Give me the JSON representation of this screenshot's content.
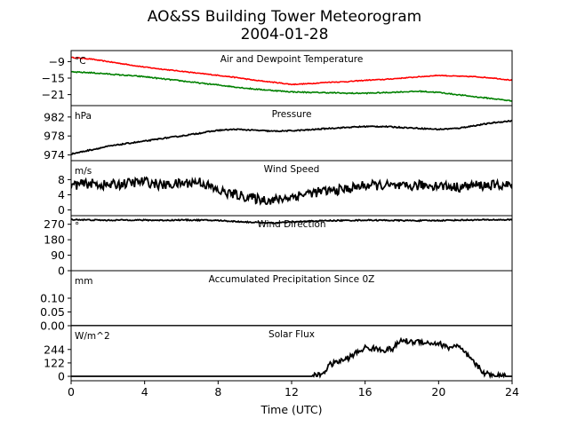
{
  "figure": {
    "title_line1": "AO&SS Building Tower Meteorogram",
    "title_line2": "2004-01-28"
  },
  "chart_data": {
    "type": "line",
    "x_unit": "hours",
    "xlabel": "Time (UTC)",
    "xlim": [
      0,
      24
    ],
    "xticks": [
      0,
      4,
      8,
      12,
      16,
      20,
      24
    ],
    "grid": false,
    "panels": [
      {
        "id": "temperature",
        "title": "Air and Dewpoint Temperature",
        "unit": "°C",
        "ylim": [
          -25,
          -5
        ],
        "yticks": [
          -21,
          -15,
          -9
        ],
        "ytick_labels": [
          "−21",
          "−15",
          "−9"
        ],
        "series": [
          {
            "color": "#ff0000",
            "x": [
              0,
              1,
              2,
              3,
              4,
              5,
              6,
              7,
              8,
              9,
              10,
              11,
              12,
              13,
              14,
              15,
              16,
              17,
              18,
              19,
              20,
              21,
              22,
              23,
              24
            ],
            "y": [
              -7.5,
              -8.0,
              -9.0,
              -10.0,
              -11.0,
              -11.8,
              -12.5,
              -13.3,
              -14.0,
              -14.8,
              -15.8,
              -16.5,
              -17.3,
              -17.0,
              -16.5,
              -16.3,
              -15.8,
              -15.5,
              -15.0,
              -14.5,
              -14.0,
              -14.3,
              -14.5,
              -15.0,
              -15.8
            ],
            "noise": 0.15
          },
          {
            "color": "#008000",
            "x": [
              0,
              1,
              2,
              3,
              4,
              5,
              6,
              7,
              8,
              9,
              10,
              11,
              12,
              13,
              14,
              15,
              16,
              17,
              18,
              19,
              20,
              21,
              22,
              23,
              24
            ],
            "y": [
              -12.8,
              -13.0,
              -13.5,
              -14.0,
              -14.5,
              -15.3,
              -16.0,
              -16.8,
              -17.5,
              -18.3,
              -19.0,
              -19.5,
              -20.0,
              -20.2,
              -20.3,
              -20.5,
              -20.5,
              -20.3,
              -20.0,
              -19.8,
              -20.2,
              -21.0,
              -21.8,
              -22.5,
              -23.3
            ],
            "noise": 0.2
          }
        ]
      },
      {
        "id": "pressure",
        "title": "Pressure",
        "unit": "hPa",
        "ylim": [
          972.8,
          984.4
        ],
        "yticks": [
          974,
          978,
          982
        ],
        "ytick_labels": [
          "974",
          "978",
          "982"
        ],
        "series": [
          {
            "color": "#000000",
            "x": [
              0,
              1,
              2,
              3,
              4,
              5,
              6,
              7,
              8,
              9,
              10,
              11,
              12,
              13,
              14,
              15,
              16,
              17,
              18,
              19,
              20,
              21,
              22,
              23,
              24
            ],
            "y": [
              974.2,
              975.0,
              975.8,
              976.4,
              976.9,
              977.5,
              978.0,
              978.6,
              979.2,
              979.4,
              979.2,
              979.0,
              979.1,
              979.3,
              979.6,
              979.8,
              980.0,
              980.0,
              979.8,
              979.6,
              979.4,
              979.6,
              980.2,
              980.8,
              981.2
            ],
            "noise": 0.12
          }
        ]
      },
      {
        "id": "wind_speed",
        "title": "Wind Speed",
        "unit": "m/s",
        "ylim": [
          -1.5,
          13
        ],
        "yticks": [
          0,
          4,
          8
        ],
        "ytick_labels": [
          "0",
          "4",
          "8"
        ],
        "series": [
          {
            "color": "#000000",
            "x": [
              0,
              1,
              2,
              3,
              4,
              5,
              6,
              7,
              8,
              9,
              10,
              11,
              12,
              13,
              14,
              15,
              16,
              17,
              18,
              19,
              20,
              21,
              22,
              23,
              24
            ],
            "y": [
              6.5,
              7.0,
              6.5,
              7.0,
              7.5,
              6.5,
              7.0,
              7.5,
              5.0,
              4.0,
              3.0,
              2.5,
              3.5,
              4.5,
              5.0,
              5.5,
              6.5,
              6.5,
              6.0,
              6.5,
              6.5,
              6.0,
              6.5,
              6.5,
              6.5
            ],
            "noise": 1.3
          }
        ]
      },
      {
        "id": "wind_direction",
        "title": "Wind Direction",
        "unit": "°",
        "ylim": [
          0,
          320
        ],
        "yticks": [
          0,
          90,
          180,
          270
        ],
        "ytick_labels": [
          "0",
          "90",
          "180",
          "270"
        ],
        "series": [
          {
            "color": "#000000",
            "x": [
              0,
              1,
              2,
              3,
              4,
              5,
              6,
              7,
              8,
              9,
              10,
              11,
              12,
              13,
              14,
              15,
              16,
              17,
              18,
              19,
              20,
              21,
              22,
              23,
              24
            ],
            "y": [
              298,
              295,
              293,
              295,
              294,
              293,
              295,
              294,
              292,
              286,
              281,
              277,
              283,
              288,
              291,
              292,
              294,
              293,
              292,
              291,
              292,
              294,
              295,
              296,
              296
            ],
            "noise": 3.5
          }
        ]
      },
      {
        "id": "precipitation",
        "title": "Accumulated Precipitation Since 0Z",
        "unit": "mm",
        "ylim": [
          0,
          0.2
        ],
        "yticks": [
          0.0,
          0.05,
          0.1
        ],
        "ytick_labels": [
          "0.00",
          "0.05",
          "0.10"
        ],
        "series": [
          {
            "color": "#000000",
            "x": [
              0,
              24
            ],
            "y": [
              0,
              0
            ],
            "noise": 0
          }
        ]
      },
      {
        "id": "solar_flux",
        "title": "Solar Flux",
        "unit": "W/m^2",
        "ylim": [
          -40,
          460
        ],
        "yticks": [
          0,
          122,
          244
        ],
        "ytick_labels": [
          "0",
          "122",
          "244"
        ],
        "series": [
          {
            "color": "#000000",
            "x": [
              0,
              13.0,
              13.5,
              13.8,
              14.0,
              14.5,
              15.0,
              15.5,
              16.0,
              16.5,
              17.0,
              17.5,
              18.0,
              18.5,
              19.0,
              19.5,
              20.0,
              20.5,
              21.0,
              21.5,
              22.0,
              22.5,
              23.0,
              24
            ],
            "y": [
              0,
              0,
              10,
              40,
              100,
              130,
              160,
              210,
              260,
              250,
              240,
              250,
              330,
              310,
              320,
              300,
              300,
              260,
              280,
              200,
              110,
              30,
              3,
              0
            ],
            "noise": 25
          }
        ]
      }
    ]
  }
}
